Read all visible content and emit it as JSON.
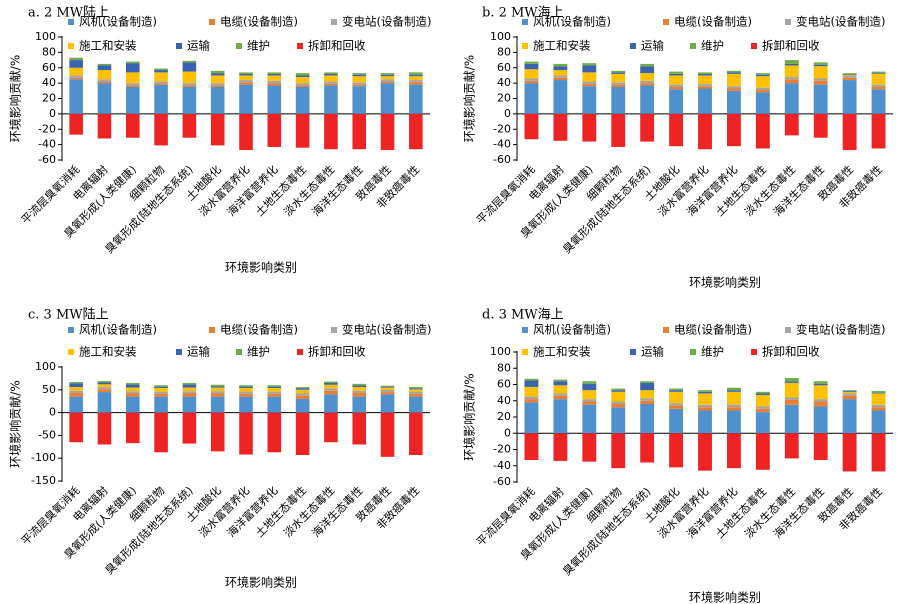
{
  "colors": {
    "wind": "#4f91cd",
    "cable": "#ed7d31",
    "substation": "#a5a5a5",
    "construction": "#ffc000",
    "transport": "#3b63b0",
    "maintenance": "#70ad47",
    "decommission": "#ee2424"
  },
  "legend": {
    "wind": "风机(设备制造)",
    "cable": "电缆(设备制造)",
    "substation": "变电站(设备制造)",
    "construction": "施工和安装",
    "transport": "运输",
    "maintenance": "维护",
    "decommission": "拆卸和回收"
  },
  "chart_data": [
    {
      "type": "bar",
      "stacked": true,
      "title": "a. 2 MW陆上",
      "xlabel": "环境影响类别",
      "ylabel": "环境影响贡献/%",
      "ylim": [
        -60,
        100
      ],
      "yticks": [
        -60,
        -40,
        -20,
        0,
        20,
        40,
        60,
        80,
        100
      ],
      "legend_position": "top-right",
      "grid": false,
      "categories": [
        "平流层臭氧消耗",
        "电离辐射",
        "臭氧形成(人类健康)",
        "细颗粒物",
        "臭氧形成(陆地生态系统)",
        "土地酸化",
        "淡水富营养化",
        "海洋富营养化",
        "土地生态毒性",
        "淡水生态毒性",
        "海洋生态毒性",
        "致癌毒性",
        "非致癌毒性"
      ],
      "series": [
        {
          "key": "wind",
          "values": [
            45,
            40,
            35,
            38,
            35,
            35,
            38,
            37,
            35,
            37,
            36,
            40,
            38
          ]
        },
        {
          "key": "cable",
          "values": [
            2,
            2,
            2,
            2,
            2,
            2,
            3,
            3,
            2,
            2,
            2,
            2,
            3
          ]
        },
        {
          "key": "substation",
          "values": [
            3,
            3,
            3,
            2,
            3,
            3,
            3,
            3,
            3,
            3,
            3,
            3,
            3
          ]
        },
        {
          "key": "construction",
          "values": [
            10,
            12,
            14,
            12,
            15,
            10,
            6,
            7,
            8,
            8,
            8,
            4,
            5
          ]
        },
        {
          "key": "transport",
          "values": [
            10,
            6,
            12,
            3,
            12,
            3,
            2,
            2,
            2,
            2,
            2,
            2,
            2
          ]
        },
        {
          "key": "maintenance",
          "values": [
            3,
            2,
            2,
            2,
            2,
            3,
            2,
            2,
            3,
            2,
            2,
            2,
            3
          ]
        },
        {
          "key": "decommission",
          "values": [
            -27,
            -32,
            -31,
            -41,
            -31,
            -41,
            -47,
            -43,
            -44,
            -46,
            -46,
            -47,
            -46
          ]
        }
      ]
    },
    {
      "type": "bar",
      "stacked": true,
      "title": "b. 2 MW海上",
      "xlabel": "环境影响类别",
      "ylabel": "环境影响贡献/%",
      "ylim": [
        -60,
        100
      ],
      "yticks": [
        -60,
        -40,
        -20,
        0,
        20,
        40,
        60,
        80,
        100
      ],
      "legend_position": "top-right",
      "grid": false,
      "categories": [
        "平流层臭氧消耗",
        "电离辐射",
        "臭氧形成(人类健康)",
        "细颗粒物",
        "臭氧形成(陆地生态系统)",
        "土地酸化",
        "淡水富营养化",
        "海洋富营养化",
        "土地生态毒性",
        "淡水生态毒性",
        "海洋生态毒性",
        "致癌毒性",
        "非致癌毒性"
      ],
      "series": [
        {
          "key": "wind",
          "values": [
            40,
            44,
            36,
            35,
            37,
            32,
            33,
            30,
            28,
            40,
            38,
            44,
            32
          ]
        },
        {
          "key": "cable",
          "values": [
            3,
            3,
            3,
            3,
            3,
            3,
            3,
            3,
            3,
            5,
            5,
            3,
            3
          ]
        },
        {
          "key": "substation",
          "values": [
            3,
            3,
            3,
            3,
            3,
            3,
            3,
            3,
            3,
            3,
            3,
            3,
            3
          ]
        },
        {
          "key": "construction",
          "values": [
            12,
            7,
            12,
            11,
            10,
            12,
            11,
            16,
            15,
            15,
            16,
            1,
            14
          ]
        },
        {
          "key": "transport",
          "values": [
            7,
            5,
            9,
            2,
            9,
            2,
            2,
            2,
            2,
            2,
            2,
            1,
            1
          ]
        },
        {
          "key": "maintenance",
          "values": [
            3,
            3,
            3,
            2,
            3,
            3,
            2,
            2,
            2,
            5,
            3,
            1,
            2
          ]
        },
        {
          "key": "decommission",
          "values": [
            -33,
            -35,
            -36,
            -43,
            -36,
            -42,
            -46,
            -42,
            -45,
            -28,
            -31,
            -47,
            -45
          ]
        }
      ]
    },
    {
      "type": "bar",
      "stacked": true,
      "title": "c. 3 MW陆上",
      "xlabel": "环境影响类别",
      "ylabel": "环境影响贡献/%",
      "ylim": [
        -150,
        100
      ],
      "yticks": [
        -150,
        -100,
        -50,
        0,
        50,
        100
      ],
      "legend_position": "top-right",
      "grid": false,
      "categories": [
        "平流层臭氧消耗",
        "电离辐射",
        "臭氧形成(人类健康)",
        "细颗粒物",
        "臭氧形成(陆地生态系统)",
        "土地酸化",
        "淡水富营养化",
        "海洋富营养化",
        "土地生态毒性",
        "淡水生态毒性",
        "海洋生态毒性",
        "致癌毒性",
        "非致癌毒性"
      ],
      "series": [
        {
          "key": "wind",
          "values": [
            35,
            45,
            35,
            35,
            35,
            35,
            35,
            35,
            30,
            40,
            35,
            40,
            35
          ]
        },
        {
          "key": "cable",
          "values": [
            8,
            6,
            7,
            6,
            7,
            7,
            6,
            6,
            7,
            8,
            8,
            5,
            6
          ]
        },
        {
          "key": "substation",
          "values": [
            5,
            5,
            5,
            5,
            5,
            5,
            5,
            5,
            5,
            5,
            5,
            5,
            5
          ]
        },
        {
          "key": "construction",
          "values": [
            8,
            6,
            8,
            8,
            8,
            8,
            8,
            8,
            8,
            8,
            8,
            5,
            5
          ]
        },
        {
          "key": "transport",
          "values": [
            8,
            4,
            7,
            3,
            7,
            3,
            3,
            3,
            3,
            4,
            4,
            2,
            2
          ]
        },
        {
          "key": "maintenance",
          "values": [
            3,
            3,
            3,
            3,
            3,
            3,
            3,
            3,
            3,
            3,
            3,
            2,
            3
          ]
        },
        {
          "key": "decommission",
          "values": [
            -65,
            -70,
            -67,
            -87,
            -68,
            -85,
            -92,
            -87,
            -93,
            -65,
            -70,
            -97,
            -93
          ]
        }
      ]
    },
    {
      "type": "bar",
      "stacked": true,
      "title": "d. 3 MW海上",
      "xlabel": "环境影响类别",
      "ylabel": "环境影响贡献/%",
      "ylim": [
        -60,
        100
      ],
      "yticks": [
        -60,
        -40,
        -20,
        0,
        20,
        40,
        60,
        80,
        100
      ],
      "legend_position": "top-right",
      "grid": false,
      "categories": [
        "平流层臭氧消耗",
        "电离辐射",
        "臭氧形成(人类健康)",
        "细颗粒物",
        "臭氧形成(陆地生态系统)",
        "土地酸化",
        "淡水富营养化",
        "海洋富营养化",
        "土地生态毒性",
        "淡水生态毒性",
        "海洋生态毒性",
        "致癌毒性",
        "非致癌毒性"
      ],
      "series": [
        {
          "key": "wind",
          "values": [
            38,
            42,
            35,
            32,
            36,
            30,
            28,
            28,
            26,
            35,
            33,
            42,
            28
          ]
        },
        {
          "key": "cable",
          "values": [
            4,
            4,
            4,
            4,
            4,
            4,
            4,
            4,
            4,
            6,
            6,
            4,
            4
          ]
        },
        {
          "key": "substation",
          "values": [
            3,
            3,
            3,
            3,
            3,
            3,
            3,
            3,
            3,
            3,
            3,
            3,
            3
          ]
        },
        {
          "key": "construction",
          "values": [
            12,
            10,
            11,
            12,
            10,
            14,
            14,
            16,
            14,
            18,
            17,
            2,
            14
          ]
        },
        {
          "key": "transport",
          "values": [
            8,
            5,
            8,
            2,
            9,
            2,
            2,
            2,
            2,
            2,
            2,
            1,
            1
          ]
        },
        {
          "key": "maintenance",
          "values": [
            2,
            2,
            3,
            2,
            2,
            2,
            2,
            3,
            2,
            4,
            3,
            1,
            2
          ]
        },
        {
          "key": "decommission",
          "values": [
            -33,
            -34,
            -35,
            -43,
            -36,
            -42,
            -46,
            -43,
            -45,
            -31,
            -33,
            -47,
            -47
          ]
        }
      ]
    }
  ]
}
